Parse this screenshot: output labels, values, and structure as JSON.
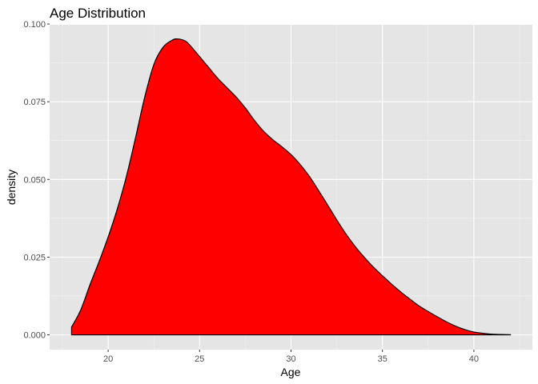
{
  "chart_data": {
    "type": "area",
    "title": "Age Distribution",
    "xlabel": "Age",
    "ylabel": "density",
    "xlim": [
      16.8,
      43.2
    ],
    "ylim": [
      -0.00475,
      0.09975
    ],
    "x_ticks": [
      20,
      25,
      30,
      35,
      40
    ],
    "x_tick_labels": [
      "20",
      "25",
      "30",
      "35",
      "40"
    ],
    "y_ticks": [
      0,
      0.025,
      0.05,
      0.075,
      0.1
    ],
    "y_tick_labels": [
      "0.000",
      "0.025",
      "0.050",
      "0.075",
      "0.100"
    ],
    "grid": true,
    "legend": "none",
    "fill_color": "#ff0000",
    "line_color": "#000000",
    "panel_background": "#e5e5e5",
    "series": [
      {
        "x": [
          18,
          18.5,
          19,
          19.5,
          20,
          20.5,
          21,
          21.5,
          22,
          22.5,
          23,
          23.5,
          23.8,
          24.2,
          24.5,
          25,
          25.5,
          26,
          26.5,
          27,
          27.5,
          28,
          28.5,
          29,
          29.5,
          30,
          30.5,
          31,
          31.5,
          32,
          32.5,
          33,
          33.5,
          34,
          34.5,
          35,
          35.5,
          36,
          36.5,
          37,
          37.5,
          38,
          38.5,
          39,
          39.5,
          40,
          40.5,
          41,
          41.5,
          42
        ],
        "y": [
          0.0025,
          0.008,
          0.016,
          0.0235,
          0.0315,
          0.0405,
          0.051,
          0.0635,
          0.0765,
          0.087,
          0.0925,
          0.0948,
          0.0952,
          0.0946,
          0.093,
          0.0895,
          0.086,
          0.0825,
          0.0795,
          0.0765,
          0.073,
          0.069,
          0.0655,
          0.0628,
          0.0605,
          0.058,
          0.0548,
          0.051,
          0.0465,
          0.0418,
          0.037,
          0.0325,
          0.0285,
          0.025,
          0.0218,
          0.019,
          0.0163,
          0.0138,
          0.0115,
          0.0093,
          0.0075,
          0.0058,
          0.0042,
          0.0028,
          0.0017,
          0.0009,
          0.0005,
          0.0002,
          0.0001,
          5e-05
        ]
      }
    ]
  }
}
